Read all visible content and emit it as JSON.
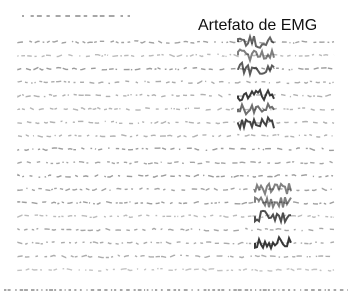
{
  "annotation": "Artefato de EMG"
}
